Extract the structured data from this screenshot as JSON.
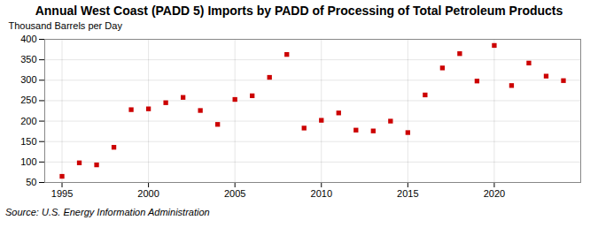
{
  "chart_data": {
    "type": "scatter",
    "title": "Annual West Coast (PADD 5) Imports by PADD of Processing of Total Petroleum Products",
    "ylabel": "Thousand Barrels per Day",
    "annotation": "Source: U.S. Energy Information Administration",
    "x": [
      1995,
      1996,
      1997,
      1998,
      1999,
      2000,
      2001,
      2002,
      2003,
      2004,
      2005,
      2006,
      2007,
      2008,
      2009,
      2010,
      2011,
      2012,
      2013,
      2014,
      2015,
      2016,
      2017,
      2018,
      2019,
      2020,
      2021,
      2022,
      2023,
      2024
    ],
    "values": [
      65,
      98,
      93,
      136,
      228,
      230,
      245,
      258,
      226,
      192,
      253,
      262,
      307,
      363,
      183,
      202,
      220,
      178,
      176,
      200,
      172,
      264,
      330,
      365,
      298,
      385,
      287,
      342,
      310,
      299
    ],
    "color": "#cc0000",
    "marker": "square",
    "xlim": [
      1994.0,
      2025.0
    ],
    "ylim": [
      50,
      400
    ],
    "xticks": [
      1995,
      2000,
      2005,
      2010,
      2015,
      2020
    ],
    "yticks": [
      50,
      100,
      150,
      200,
      250,
      300,
      350,
      400
    ],
    "grid": true
  }
}
